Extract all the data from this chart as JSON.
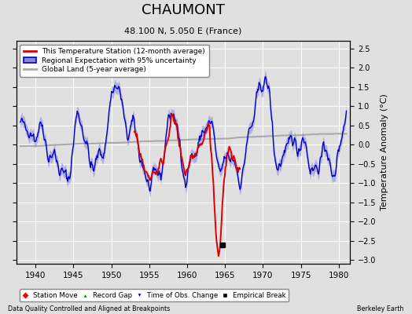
{
  "title": "CHAUMONT",
  "subtitle": "48.100 N, 5.050 E (France)",
  "ylabel": "Temperature Anomaly (°C)",
  "xlabel_left": "Data Quality Controlled and Aligned at Breakpoints",
  "xlabel_right": "Berkeley Earth",
  "xlim": [
    1937.5,
    1981.5
  ],
  "ylim": [
    -3.1,
    2.7
  ],
  "yticks": [
    -3,
    -2.5,
    -2,
    -1.5,
    -1,
    -0.5,
    0,
    0.5,
    1,
    1.5,
    2,
    2.5
  ],
  "xticks": [
    1940,
    1945,
    1950,
    1955,
    1960,
    1965,
    1970,
    1975,
    1980
  ],
  "bg_color": "#e0e0e0",
  "plot_bg_color": "#e0e0e0",
  "regional_color": "#0000cc",
  "regional_fill_color": "#8888dd",
  "station_color": "#dd0000",
  "global_color": "#aaaaaa",
  "empirical_break_year": 1964.7,
  "empirical_break_val": -2.6
}
